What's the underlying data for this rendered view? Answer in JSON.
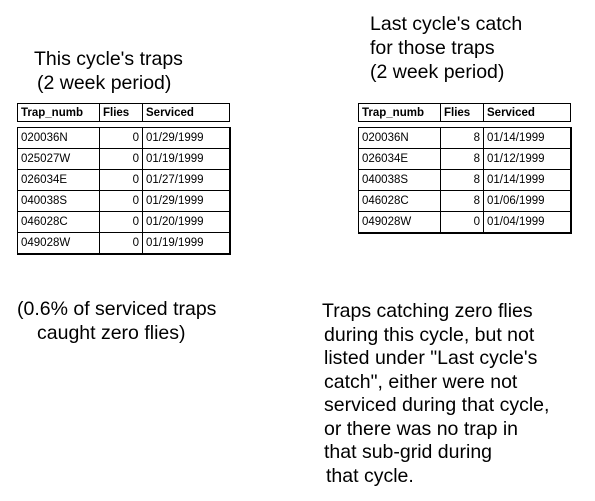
{
  "current": {
    "heading": [
      "This cycle's traps",
      "(2 week period)"
    ],
    "columns": [
      "Trap_numb",
      "Flies",
      "Serviced"
    ],
    "rows": [
      [
        "020036N",
        "0",
        "01/29/1999"
      ],
      [
        "025027W",
        "0",
        "01/19/1999"
      ],
      [
        "026034E",
        "0",
        "01/27/1999"
      ],
      [
        "040038S",
        "0",
        "01/29/1999"
      ],
      [
        "046028C",
        "0",
        "01/20/1999"
      ],
      [
        "049028W",
        "0",
        "01/19/1999"
      ]
    ]
  },
  "previous": {
    "heading": [
      "Last cycle's catch",
      "for those traps",
      "(2 week period)"
    ],
    "columns": [
      "Trap_numb",
      "Flies",
      "Serviced"
    ],
    "rows": [
      [
        "020036N",
        "8",
        "01/14/1999"
      ],
      [
        "026034E",
        "8",
        "01/12/1999"
      ],
      [
        "040038S",
        "8",
        "01/14/1999"
      ],
      [
        "046028C",
        "8",
        "01/06/1999"
      ],
      [
        "049028W",
        "0",
        "01/04/1999"
      ]
    ]
  },
  "notes": {
    "left": [
      "(0.6% of serviced traps",
      "caught zero flies)"
    ],
    "right": [
      "Traps catching zero flies",
      "during this cycle, but not",
      "listed under \"Last cycle's",
      "catch\", either were not",
      "serviced during that cycle,",
      "or there was no trap in",
      "that sub-grid during",
      "that cycle."
    ]
  }
}
